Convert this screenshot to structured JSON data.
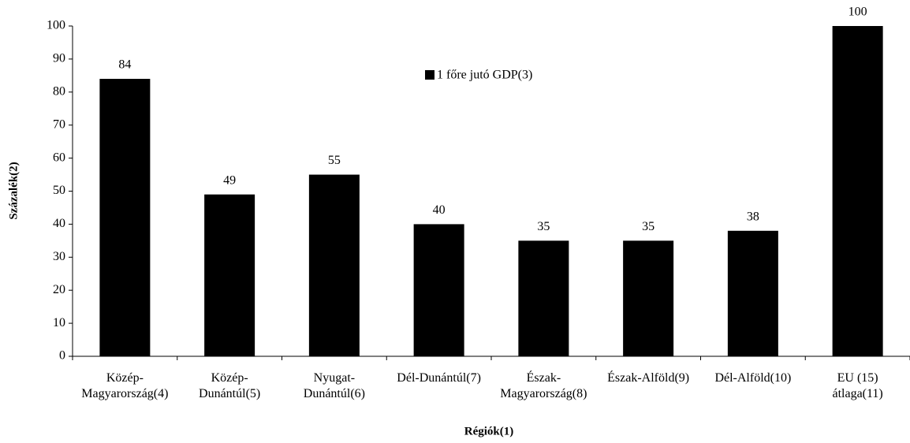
{
  "chart_data": {
    "type": "bar",
    "x_label": "Régiók(1)",
    "y_label": "Százalék(2)",
    "categories": [
      [
        "Közép-",
        "Magyarország(4)"
      ],
      [
        "Közép-",
        "Dunántúl(5)"
      ],
      [
        "Nyugat-",
        "Dunántúl(6)"
      ],
      [
        "Dél-Dunántúl(7)"
      ],
      [
        "Észak-",
        "Magyarország(8)"
      ],
      [
        "Észak-Alföld(9)"
      ],
      [
        "Dél-Alföld(10)"
      ],
      [
        "EU (15)",
        "átlaga(11)"
      ]
    ],
    "series": [
      {
        "name": "1 főre jutó GDP(3)",
        "color": "#000000",
        "values": [
          84,
          49,
          55,
          40,
          35,
          35,
          38,
          100
        ]
      }
    ],
    "ylim": [
      0,
      100
    ],
    "yticks": [
      0,
      10,
      20,
      30,
      40,
      50,
      60,
      70,
      80,
      90,
      100
    ],
    "grid": false
  }
}
